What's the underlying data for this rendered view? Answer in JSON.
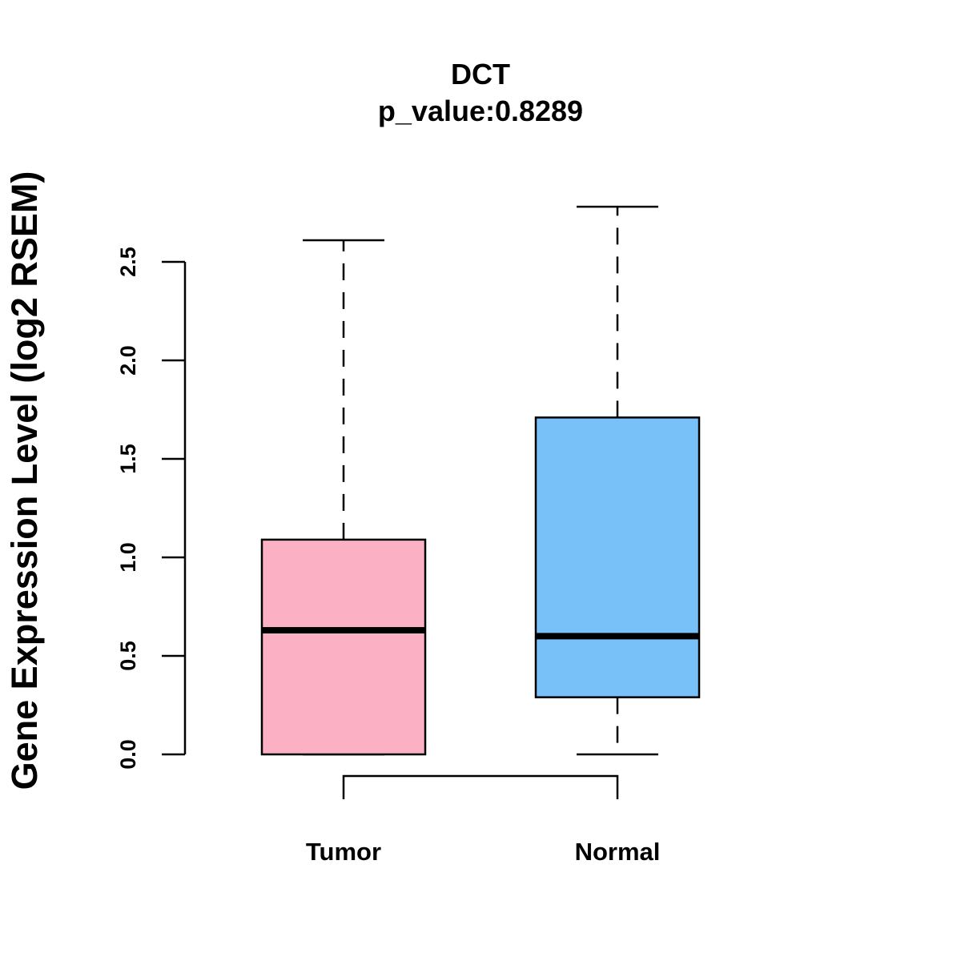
{
  "chart_data": {
    "type": "boxplot",
    "title": "DCT",
    "subtitle": "p_value:0.8289",
    "ylabel": "Gene Expression Level (log2 RSEM)",
    "xlabel": "",
    "ylim": [
      0,
      2.5
    ],
    "yticks": [
      0.0,
      0.5,
      1.0,
      1.5,
      2.0,
      2.5
    ],
    "ytick_labels": [
      "0.0",
      "0.5",
      "1.0",
      "1.5",
      "2.0",
      "2.5"
    ],
    "comparison_bracket": [
      "Tumor",
      "Normal"
    ],
    "groups": [
      {
        "name": "Tumor",
        "color": "#FBB1C3",
        "whisker_low": 0.0,
        "q1": 0.0,
        "median": 0.63,
        "q3": 1.09,
        "whisker_high": 2.61
      },
      {
        "name": "Normal",
        "color": "#78C1F8",
        "whisker_low": 0.0,
        "q1": 0.29,
        "median": 0.6,
        "q3": 1.71,
        "whisker_high": 2.78
      }
    ]
  }
}
